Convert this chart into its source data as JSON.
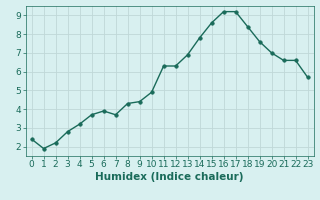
{
  "x": [
    0,
    1,
    2,
    3,
    4,
    5,
    6,
    7,
    8,
    9,
    10,
    11,
    12,
    13,
    14,
    15,
    16,
    17,
    18,
    19,
    20,
    21,
    22,
    23
  ],
  "y": [
    2.4,
    1.9,
    2.2,
    2.8,
    3.2,
    3.7,
    3.9,
    3.7,
    4.3,
    4.4,
    4.9,
    6.3,
    6.3,
    6.9,
    7.8,
    8.6,
    9.2,
    9.2,
    8.4,
    7.6,
    7.0,
    6.6,
    6.6,
    5.7
  ],
  "line_color": "#1a6b5a",
  "marker": "o",
  "marker_size": 2.5,
  "background_color": "#d8f0f0",
  "grid_color": "#c0d8d8",
  "xlabel": "Humidex (Indice chaleur)",
  "xlim": [
    -0.5,
    23.5
  ],
  "ylim": [
    1.5,
    9.5
  ],
  "yticks": [
    2,
    3,
    4,
    5,
    6,
    7,
    8,
    9
  ],
  "xticks": [
    0,
    1,
    2,
    3,
    4,
    5,
    6,
    7,
    8,
    9,
    10,
    11,
    12,
    13,
    14,
    15,
    16,
    17,
    18,
    19,
    20,
    21,
    22,
    23
  ],
  "tick_color": "#1a6b5a",
  "xlabel_fontsize": 7.5,
  "tick_fontsize": 6.5,
  "linewidth": 1.0,
  "linestyle": "-"
}
